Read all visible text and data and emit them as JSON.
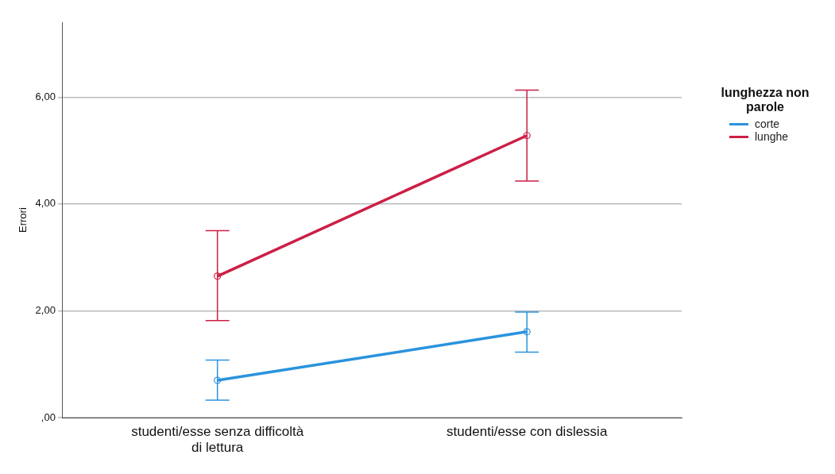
{
  "chart_data": {
    "type": "line",
    "ylabel": "Errori",
    "legend_title": "lunghezza non parole",
    "categories": [
      "studenti/esse senza difficoltà di lettura",
      "studenti/esse con dislessia"
    ],
    "series": [
      {
        "name": "corte",
        "color": "#2a93dd",
        "values": [
          0.7,
          1.61
        ],
        "errors": [
          [
            0.33,
            1.08
          ],
          [
            1.23,
            1.98
          ]
        ]
      },
      {
        "name": "lunghe",
        "color": "#cc1f45",
        "values": [
          2.65,
          5.28
        ],
        "errors": [
          [
            1.82,
            3.5
          ],
          [
            4.43,
            6.13
          ]
        ]
      }
    ],
    "ylim": [
      0,
      7.4
    ],
    "yticks": [
      {
        "value": 0,
        "label": ",00"
      },
      {
        "value": 2,
        "label": "2,00"
      },
      {
        "value": 4,
        "label": "4,00"
      },
      {
        "value": 6,
        "label": "6,00"
      }
    ],
    "grid": "y",
    "legend": "right",
    "marker": "circle",
    "line_style": "solid"
  }
}
